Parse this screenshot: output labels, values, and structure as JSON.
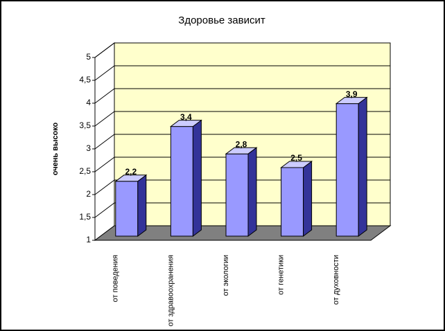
{
  "chart_data": {
    "type": "bar3d",
    "title": "Здоровье зависит",
    "y_label": "очень высоко",
    "categories": [
      "от поведения",
      "от здравоохранения",
      "от экологии",
      "от генетики",
      "от духовности"
    ],
    "values": [
      2.2,
      3.4,
      2.8,
      2.5,
      3.9
    ],
    "value_labels": [
      "2,2",
      "3,4",
      "2,8",
      "2,5",
      "3,9"
    ],
    "color": "#9999ff",
    "ylim": [
      1,
      5
    ],
    "yticks": [
      1,
      {
        "value": 1.5,
        "label": "1,5"
      },
      2,
      {
        "value": 2.5,
        "label": "2,5"
      },
      3,
      {
        "value": 3.5,
        "label": "3,5"
      },
      4,
      {
        "value": 4.5,
        "label": "4,5"
      },
      5
    ],
    "grid": true
  }
}
